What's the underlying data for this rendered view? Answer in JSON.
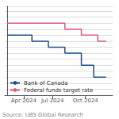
{
  "chart_data": {
    "type": "line",
    "series": [
      {
        "name": "Bank of Canada",
        "color": "#1a4f8a",
        "x": [
          0,
          3,
          3,
          5,
          5,
          7,
          7,
          9,
          9,
          10.5,
          10.5,
          12
        ],
        "values": [
          5.0,
          5.0,
          4.75,
          4.75,
          4.5,
          4.5,
          4.25,
          4.25,
          3.75,
          3.75,
          3.25,
          3.25
        ]
      },
      {
        "name": "Federal funds target rate",
        "color": "#e05a7a",
        "x": [
          0,
          7,
          7,
          9,
          9,
          11,
          11,
          12
        ],
        "values": [
          5.5,
          5.5,
          5.25,
          5.25,
          5.0,
          5.0,
          4.75,
          4.75
        ]
      }
    ],
    "xlim": [
      -0.3,
      12.8
    ],
    "xticks": [
      {
        "value": 2,
        "label": "Apr 2024"
      },
      {
        "value": 5.5,
        "label": "Jul 2024"
      },
      {
        "value": 9.5,
        "label": "Oct 2024"
      }
    ],
    "ylim": [
      2.5,
      6.2
    ],
    "yticks": [
      2.5,
      2.75,
      3.0,
      3.25,
      3.5,
      3.75,
      4.0,
      4.25,
      4.5,
      4.75,
      5.0,
      5.25,
      5.5,
      5.75,
      6.0
    ],
    "tick_labels": "x",
    "grid": true,
    "legend": "lower left",
    "annotations": [
      "Source: UBS Global Research"
    ]
  }
}
